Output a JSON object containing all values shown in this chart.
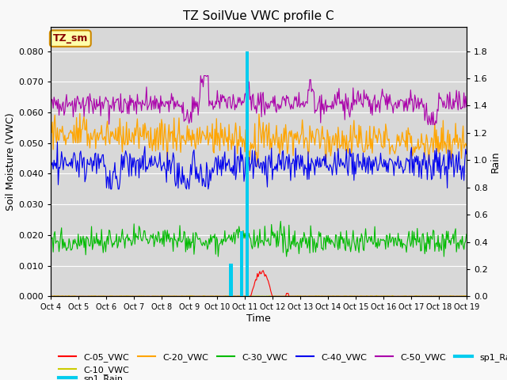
{
  "title": "TZ SoilVue VWC profile C",
  "xlabel": "Time",
  "ylabel_left": "Soil Moisture (VWC)",
  "ylabel_right": "Rain",
  "annotation_text": "TZ_sm",
  "legend_entries": [
    "C-05_VWC",
    "C-10_VWC",
    "C-20_VWC",
    "C-30_VWC",
    "C-40_VWC",
    "C-50_VWC",
    "sp1_Rain"
  ],
  "colors": {
    "C-05_VWC": "#ff0000",
    "C-10_VWC": "#cccc00",
    "C-20_VWC": "#ffa500",
    "C-30_VWC": "#00bb00",
    "C-40_VWC": "#0000ee",
    "C-50_VWC": "#aa00aa",
    "sp1_Rain": "#00ccee"
  },
  "ylim_left": [
    0.0,
    0.088
  ],
  "ylim_right": [
    0.0,
    1.98
  ],
  "n_points": 500,
  "x_tick_labels": [
    "Oct 4",
    "Oct 5",
    "Oct 6",
    "Oct 7",
    "Oct 8",
    "Oct 9",
    "Oct 10",
    "Oct 11",
    "Oct 12",
    "Oct 13",
    "Oct 14",
    "Oct 15",
    "Oct 16",
    "Oct 17",
    "Oct 18",
    "Oct 19"
  ],
  "background_color": "#d8d8d8",
  "fig_background": "#f8f8f8",
  "grid_color": "#ffffff",
  "title_fontsize": 11,
  "left_yticks": [
    0.0,
    0.01,
    0.02,
    0.03,
    0.04,
    0.05,
    0.06,
    0.07,
    0.08
  ],
  "right_yticks": [
    0.0,
    0.2,
    0.4,
    0.6,
    0.8,
    1.0,
    1.2,
    1.4,
    1.6,
    1.8
  ]
}
